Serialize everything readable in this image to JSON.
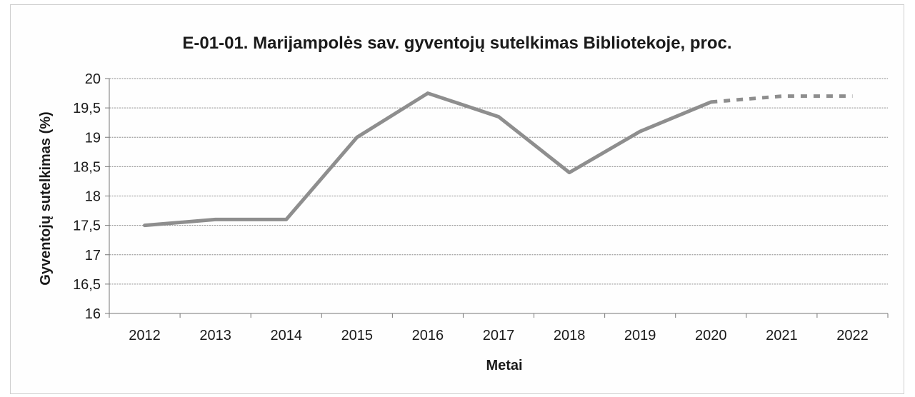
{
  "chart_data": {
    "type": "line",
    "title": "E-01-01. Marijampolės sav. gyventojų sutelkimas Bibliotekoje, proc.",
    "xlabel": "Metai",
    "ylabel": "Gyventojų sutelkimas (%)",
    "categories": [
      "2012",
      "2013",
      "2014",
      "2015",
      "2016",
      "2017",
      "2018",
      "2019",
      "2020",
      "2021",
      "2022"
    ],
    "y_ticks": [
      "16",
      "16,5",
      "17",
      "17,5",
      "18",
      "18,5",
      "19",
      "19,5",
      "20"
    ],
    "ylim": [
      16,
      20
    ],
    "grid": true,
    "legend": "none",
    "series": [
      {
        "style": "solid",
        "x": [
          "2012",
          "2013",
          "2014",
          "2015",
          "2016",
          "2017",
          "2018",
          "2019",
          "2020"
        ],
        "values": [
          17.5,
          17.6,
          17.6,
          19.0,
          19.75,
          19.35,
          18.4,
          19.1,
          19.6
        ]
      },
      {
        "style": "dashed",
        "x": [
          "2020",
          "2021",
          "2022"
        ],
        "values": [
          19.6,
          19.7,
          19.7
        ]
      }
    ],
    "colors": {
      "line": "#8e8e8e",
      "grid": "#8a8a8a",
      "axis": "#777777",
      "text": "#1a1a1a"
    }
  }
}
